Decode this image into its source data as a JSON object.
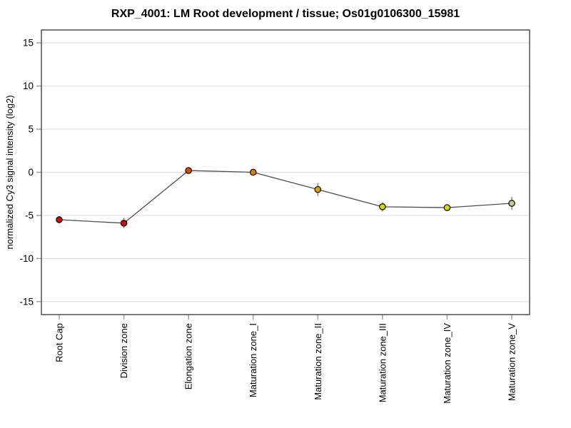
{
  "page": {
    "background": "#ffffff"
  },
  "chart_data": {
    "type": "line",
    "title": "RXP_4001: LM Root development / tissue; Os01g0106300_15981",
    "xlabel": "",
    "ylabel": "normalized Cy3 signal intensity (log2)",
    "categories": [
      "Root Cap",
      "Division zone",
      "Elongation zone",
      "Maturation zone_I",
      "Maturation zone_II",
      "Maturation zone_III",
      "Maturation zone_IV",
      "Maturation zone_V"
    ],
    "series": [
      {
        "name": "normalized Cy3 signal intensity (log2)",
        "values": [
          -5.5,
          -5.9,
          0.2,
          0.0,
          -2.0,
          -4.0,
          -4.1,
          -3.6
        ],
        "errors": [
          0.4,
          0.6,
          0.2,
          0.15,
          0.75,
          0.55,
          0.4,
          0.75
        ],
        "point_colors": [
          "#cc0d00",
          "#cc0d00",
          "#dd4a00",
          "#e57800",
          "#dca400",
          "#ddd400",
          "#ddd400",
          "#c9c98a"
        ]
      }
    ],
    "ylim": [
      -16.5,
      16.5
    ],
    "yticks": [
      15,
      10,
      5,
      0,
      -5,
      -10,
      -15
    ],
    "grid": true,
    "legend": "none",
    "colors": {
      "line": "#4d4d4d",
      "grid": "#e2e2e2",
      "frame": "#444444",
      "tick": "#999999",
      "error_bar": "#777777",
      "marker_outline": "#141414",
      "text": "#000000"
    }
  }
}
